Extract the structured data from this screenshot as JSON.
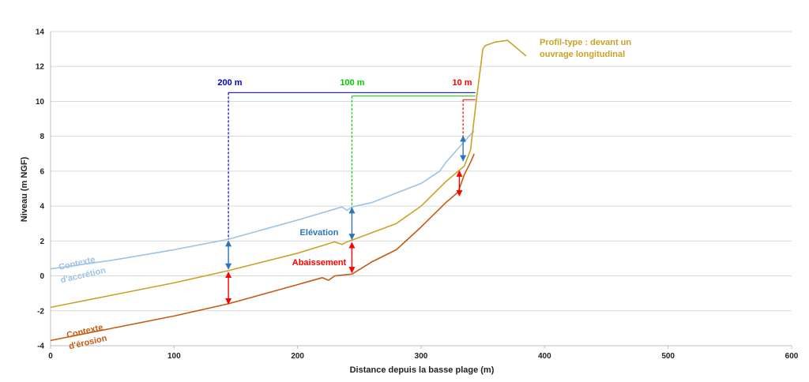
{
  "chart_data": {
    "type": "line",
    "xlabel": "Distance depuis la basse plage (m)",
    "ylabel": "Niveau (m NGF)",
    "xlim": [
      0,
      600
    ],
    "ylim": [
      -4,
      14
    ],
    "xticks": [
      0,
      100,
      200,
      300,
      400,
      500,
      600
    ],
    "yticks": [
      -4,
      -2,
      0,
      2,
      4,
      6,
      8,
      10,
      12,
      14
    ],
    "grid": "horizontal",
    "colors": {
      "accretion": "#9dc3e6",
      "profile": "#c9a227",
      "erosion": "#c55a11",
      "blue_marker": "#0000cc",
      "green_marker": "#00cc00",
      "red_marker": "#ff0000",
      "elevation_arrow": "#2e75b6",
      "lowering_arrow": "#ff0000"
    },
    "series": [
      {
        "name": "Contexte d'accrétion",
        "key": "accretion",
        "x": [
          0,
          50,
          100,
          144,
          200,
          236,
          240,
          244,
          260,
          300,
          315,
          320,
          330,
          340,
          343
        ],
        "y": [
          0.4,
          0.9,
          1.5,
          2.1,
          3.2,
          3.95,
          3.75,
          3.95,
          4.2,
          5.3,
          6.0,
          6.5,
          7.3,
          8.1,
          8.3
        ]
      },
      {
        "name": "Profil-type : devant un ouvrage longitudinal",
        "key": "profile",
        "x": [
          0,
          50,
          100,
          144,
          200,
          230,
          236,
          240,
          244,
          280,
          300,
          320,
          335,
          340,
          345,
          350,
          352,
          360,
          370,
          375,
          380,
          385
        ],
        "y": [
          -1.8,
          -1.1,
          -0.4,
          0.3,
          1.3,
          1.95,
          1.8,
          1.95,
          2.05,
          3.0,
          4.0,
          5.4,
          6.3,
          7.2,
          10.2,
          13.0,
          13.2,
          13.4,
          13.5,
          13.2,
          12.9,
          12.6
        ]
      },
      {
        "name": "Contexte d'érosion",
        "key": "erosion",
        "x": [
          0,
          50,
          100,
          144,
          200,
          220,
          225,
          230,
          244,
          260,
          280,
          300,
          320,
          330,
          335,
          340,
          343
        ],
        "y": [
          -3.7,
          -3.0,
          -2.3,
          -1.6,
          -0.5,
          -0.1,
          -0.25,
          0.0,
          0.1,
          0.8,
          1.5,
          2.8,
          4.2,
          4.8,
          5.8,
          6.5,
          7.0
        ]
      }
    ],
    "annotations": {
      "label_200m": "200 m",
      "label_100m": "100 m",
      "label_10m": "10 m",
      "elevation": "Elévation",
      "lowering": "Abaissement",
      "accretion_line1": "Contexte",
      "accretion_line2": "d'accrétion",
      "erosion_line1": "Contexte",
      "erosion_line2": "d'érosion",
      "profile_line1": "Profil-type : devant un",
      "profile_line2": "ouvrage longitudinal"
    }
  }
}
